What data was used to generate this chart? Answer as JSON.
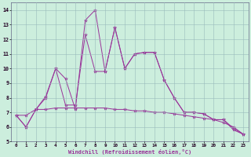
{
  "xlabel": "Windchill (Refroidissement éolien,°C)",
  "background_color": "#cceedd",
  "grid_color": "#99bbbb",
  "line_color": "#993399",
  "xlim": [
    -0.5,
    23.5
  ],
  "ylim": [
    5,
    14.5
  ],
  "x_ticks": [
    0,
    1,
    2,
    3,
    4,
    5,
    6,
    7,
    8,
    9,
    10,
    11,
    12,
    13,
    14,
    15,
    16,
    17,
    18,
    19,
    20,
    21,
    22,
    23
  ],
  "y_ticks": [
    5,
    6,
    7,
    8,
    9,
    10,
    11,
    12,
    13,
    14
  ],
  "series1_x": [
    0,
    1,
    2,
    3,
    4,
    5,
    6,
    7,
    8,
    9,
    10,
    11,
    12,
    13,
    14,
    15,
    16,
    17,
    18,
    19,
    20,
    21,
    22,
    23
  ],
  "series1_y": [
    6.8,
    6.0,
    7.2,
    8.0,
    10.0,
    9.3,
    7.2,
    13.3,
    14.0,
    9.8,
    12.8,
    10.0,
    11.0,
    11.1,
    11.1,
    9.2,
    8.0,
    7.0,
    7.0,
    6.9,
    6.5,
    6.5,
    5.8,
    5.5
  ],
  "series2_x": [
    0,
    1,
    2,
    3,
    4,
    5,
    6,
    7,
    8,
    9,
    10,
    11,
    12,
    13,
    14,
    15,
    16,
    17,
    18,
    19,
    20,
    21,
    22,
    23
  ],
  "series2_y": [
    6.8,
    6.0,
    7.2,
    8.1,
    10.0,
    7.5,
    7.5,
    12.3,
    9.8,
    9.8,
    12.8,
    10.0,
    11.0,
    11.1,
    11.1,
    9.2,
    8.0,
    7.0,
    7.0,
    6.9,
    6.5,
    6.5,
    5.9,
    5.5
  ],
  "series3_x": [
    0,
    1,
    2,
    3,
    4,
    5,
    6,
    7,
    8,
    9,
    10,
    11,
    12,
    13,
    14,
    15,
    16,
    17,
    18,
    19,
    20,
    21,
    22,
    23
  ],
  "series3_y": [
    6.8,
    6.8,
    7.2,
    7.2,
    7.3,
    7.3,
    7.3,
    7.3,
    7.3,
    7.3,
    7.2,
    7.2,
    7.1,
    7.1,
    7.0,
    7.0,
    6.9,
    6.8,
    6.7,
    6.6,
    6.5,
    6.3,
    6.0,
    5.5
  ]
}
